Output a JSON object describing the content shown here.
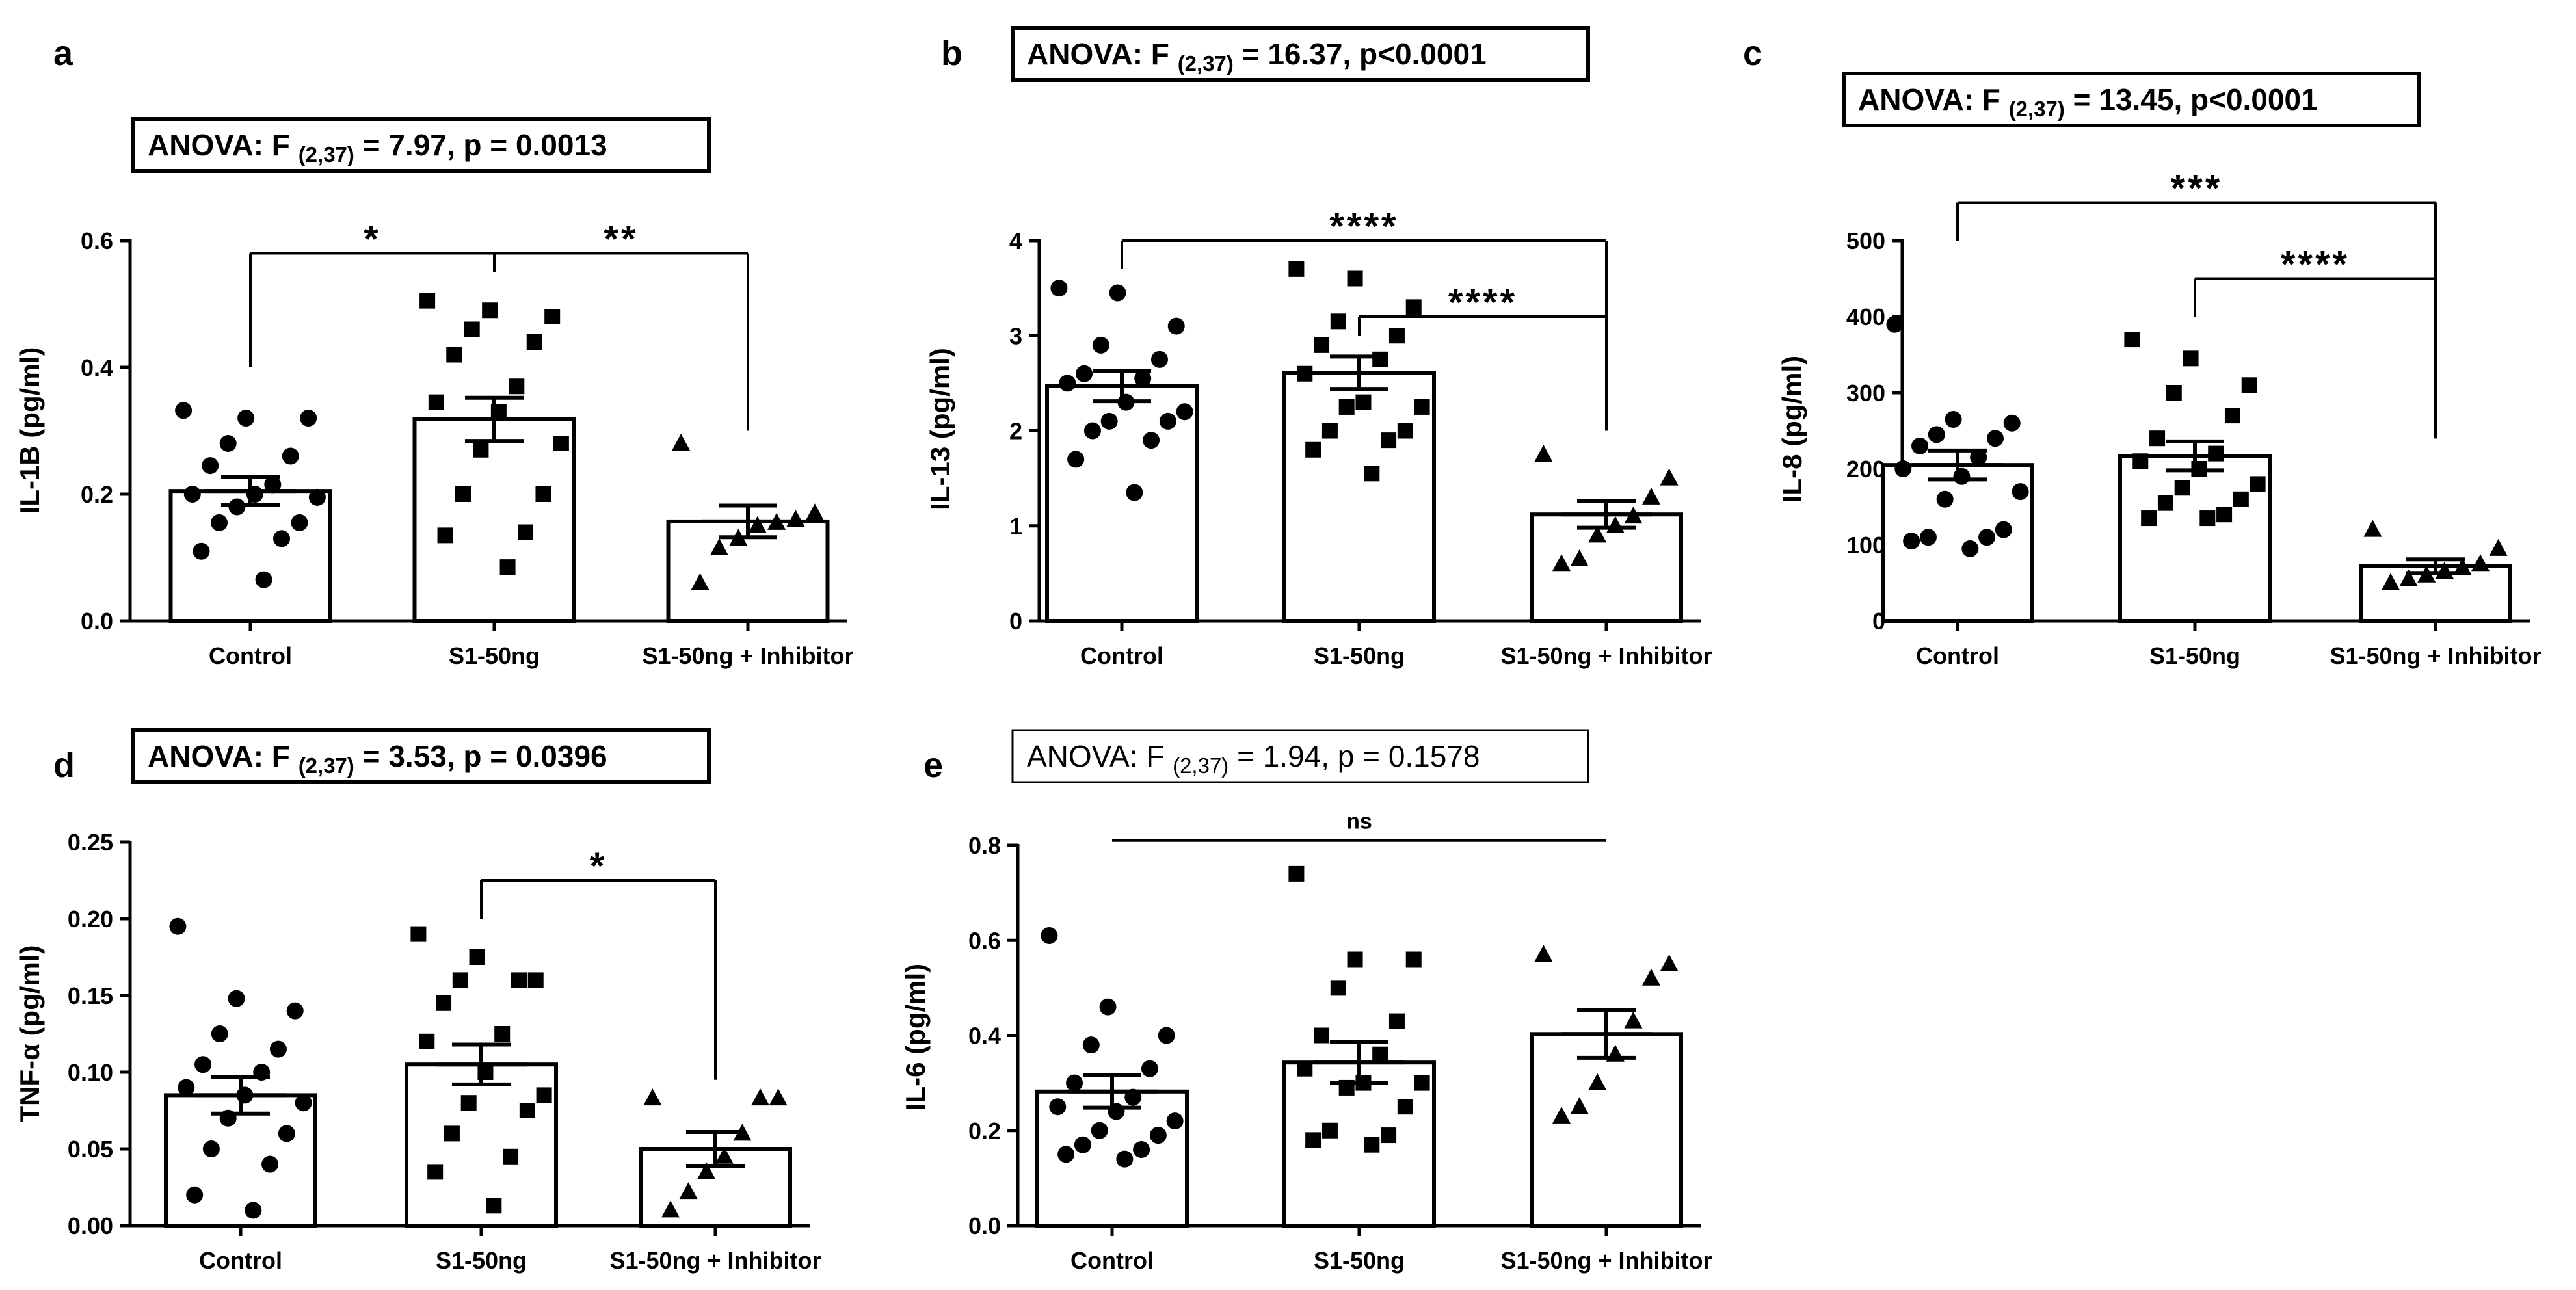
{
  "colors": {
    "ink": "#000000",
    "bar_fill": "#ffffff",
    "background": "#ffffff"
  },
  "chart_data": [
    {
      "panel_letter": "a",
      "type": "bar",
      "anova": {
        "prefix": "ANOVA: F ",
        "df": "(2,37)",
        "suffix": " = 7.97, p = 0.0013",
        "bold": true
      },
      "ylabel": "IL-1B (pg/ml)",
      "ylim": [
        0,
        0.6
      ],
      "yticks": [
        0.0,
        0.2,
        0.4,
        0.6
      ],
      "ytick_labels": [
        "0.0",
        "0.2",
        "0.4",
        "0.6"
      ],
      "categories": [
        "Control",
        "S1-50ng",
        "S1-50ng + Inhibitor"
      ],
      "means": [
        0.205,
        0.318,
        0.157
      ],
      "sem": [
        0.022,
        0.034,
        0.025
      ],
      "markers": [
        "circle",
        "square",
        "triangle"
      ],
      "points": [
        [
          0.332,
          0.32,
          0.32,
          0.28,
          0.26,
          0.245,
          0.215,
          0.2,
          0.2,
          0.195,
          0.18,
          0.155,
          0.155,
          0.13,
          0.11,
          0.065
        ],
        [
          0.505,
          0.49,
          0.48,
          0.46,
          0.44,
          0.42,
          0.37,
          0.345,
          0.33,
          0.28,
          0.27,
          0.2,
          0.2,
          0.14,
          0.135,
          0.085
        ],
        [
          0.28,
          0.17,
          0.16,
          0.155,
          0.15,
          0.13,
          0.115,
          0.06
        ]
      ],
      "comparisons": [
        {
          "from": 0,
          "to": 1,
          "label": "*",
          "y": 0.58,
          "drop_left": 0.4,
          "drop_right": 0.55
        },
        {
          "from": 1,
          "to": 2,
          "label": "**",
          "y": 0.58,
          "drop_left": 0.55,
          "drop_right": 0.3
        }
      ]
    },
    {
      "panel_letter": "b",
      "type": "bar",
      "anova": {
        "prefix": "ANOVA: F ",
        "df": "(2,37)",
        "suffix": " = 16.37, p<0.0001",
        "bold": true
      },
      "ylabel": "IL-13 (pg/ml)",
      "ylim": [
        0,
        4
      ],
      "yticks": [
        0,
        1,
        2,
        3,
        4
      ],
      "ytick_labels": [
        "0",
        "1",
        "2",
        "3",
        "4"
      ],
      "categories": [
        "Control",
        "S1-50ng",
        "S1-50ng + Inhibitor"
      ],
      "means": [
        2.47,
        2.61,
        1.12
      ],
      "sem": [
        0.16,
        0.17,
        0.14
      ],
      "markers": [
        "circle",
        "square",
        "triangle"
      ],
      "points": [
        [
          3.5,
          3.45,
          3.1,
          2.9,
          2.75,
          2.6,
          2.55,
          2.5,
          2.3,
          2.2,
          2.1,
          2.1,
          2.0,
          1.9,
          1.7,
          1.35
        ],
        [
          3.7,
          3.6,
          3.3,
          3.15,
          3.0,
          2.9,
          2.75,
          2.6,
          2.3,
          2.25,
          2.25,
          2.0,
          2.0,
          1.9,
          1.8,
          1.55
        ],
        [
          1.75,
          1.5,
          1.3,
          1.1,
          1.0,
          0.9,
          0.65,
          0.6
        ]
      ],
      "comparisons": [
        {
          "from": 0,
          "to": 2,
          "label": "****",
          "y": 4.0,
          "drop_left": 3.7,
          "drop_right": 2.0
        },
        {
          "from": 1,
          "to": 2,
          "label": "****",
          "y": 3.2,
          "drop_left": 3.0,
          "drop_right": 2.0
        }
      ]
    },
    {
      "panel_letter": "c",
      "type": "bar",
      "anova": {
        "prefix": "ANOVA: F ",
        "df": "(2,37)",
        "suffix": " = 13.45, p<0.0001",
        "bold": true
      },
      "ylabel": "IL-8 (pg/ml)",
      "ylim": [
        0,
        500
      ],
      "yticks": [
        0,
        100,
        200,
        300,
        400,
        500
      ],
      "ytick_labels": [
        "0",
        "100",
        "200",
        "300",
        "400",
        "500"
      ],
      "categories": [
        "Control",
        "S1-50ng",
        "S1-50ng + Inhibitor"
      ],
      "means": [
        205,
        217,
        72
      ],
      "sem": [
        19,
        19,
        9
      ],
      "markers": [
        "circle",
        "square",
        "triangle"
      ],
      "points": [
        [
          390,
          265,
          260,
          245,
          240,
          230,
          215,
          200,
          190,
          170,
          160,
          120,
          110,
          110,
          105,
          95
        ],
        [
          370,
          345,
          310,
          300,
          270,
          240,
          220,
          210,
          200,
          180,
          175,
          160,
          155,
          140,
          135,
          135
        ],
        [
          120,
          95,
          75,
          70,
          65,
          60,
          55,
          50
        ]
      ],
      "comparisons": [
        {
          "from": 0,
          "to": 2,
          "label": "***",
          "y": 550,
          "drop_left": 500,
          "drop_right": 240
        },
        {
          "from": 1,
          "to": 2,
          "label": "****",
          "y": 450,
          "drop_left": 400,
          "drop_right": 240
        }
      ]
    },
    {
      "panel_letter": "d",
      "type": "bar",
      "anova": {
        "prefix": "ANOVA: F ",
        "df": "(2,37)",
        "suffix": " = 3.53, p = 0.0396",
        "bold": true
      },
      "ylabel": "TNF-α (pg/ml)",
      "ylim": [
        0,
        0.25
      ],
      "yticks": [
        0.0,
        0.05,
        0.1,
        0.15,
        0.2,
        0.25
      ],
      "ytick_labels": [
        "0.00",
        "0.05",
        "0.10",
        "0.15",
        "0.20",
        "0.25"
      ],
      "categories": [
        "Control",
        "S1-50ng",
        "S1-50ng + Inhibitor"
      ],
      "means": [
        0.085,
        0.105,
        0.05
      ],
      "sem": [
        0.012,
        0.013,
        0.011
      ],
      "markers": [
        "circle",
        "square",
        "triangle"
      ],
      "points": [
        [
          0.195,
          0.148,
          0.14,
          0.125,
          0.115,
          0.105,
          0.1,
          0.09,
          0.085,
          0.08,
          0.07,
          0.06,
          0.05,
          0.04,
          0.02,
          0.01
        ],
        [
          0.19,
          0.175,
          0.16,
          0.16,
          0.16,
          0.145,
          0.125,
          0.12,
          0.1,
          0.085,
          0.08,
          0.075,
          0.06,
          0.045,
          0.035,
          0.013
        ],
        [
          0.083,
          0.083,
          0.083,
          0.06,
          0.045,
          0.035,
          0.022,
          0.01
        ]
      ],
      "comparisons": [
        {
          "from": 1,
          "to": 2,
          "label": "*",
          "y": 0.225,
          "drop_left": 0.2,
          "drop_right": 0.095
        }
      ]
    },
    {
      "panel_letter": "e",
      "type": "bar",
      "anova": {
        "prefix": "ANOVA: F ",
        "df": "(2,37)",
        "suffix": " = 1.94, p = 0.1578",
        "bold": false
      },
      "ylabel": "IL-6 (pg/ml)",
      "ylim": [
        0,
        0.8
      ],
      "yticks": [
        0.0,
        0.2,
        0.4,
        0.6,
        0.8
      ],
      "ytick_labels": [
        "0.0",
        "0.2",
        "0.4",
        "0.6",
        "0.8"
      ],
      "categories": [
        "Control",
        "S1-50ng",
        "S1-50ng + Inhibitor"
      ],
      "means": [
        0.282,
        0.343,
        0.403
      ],
      "sem": [
        0.034,
        0.043,
        0.05
      ],
      "markers": [
        "circle",
        "square",
        "triangle"
      ],
      "points": [
        [
          0.61,
          0.46,
          0.4,
          0.38,
          0.33,
          0.3,
          0.27,
          0.25,
          0.24,
          0.22,
          0.2,
          0.19,
          0.17,
          0.16,
          0.15,
          0.14
        ],
        [
          0.74,
          0.56,
          0.56,
          0.5,
          0.43,
          0.4,
          0.36,
          0.33,
          0.3,
          0.3,
          0.29,
          0.25,
          0.2,
          0.19,
          0.18,
          0.17
        ],
        [
          0.57,
          0.55,
          0.52,
          0.43,
          0.36,
          0.3,
          0.25,
          0.23
        ]
      ],
      "comparisons": [
        {
          "from": 0,
          "to": 2,
          "label": "ns",
          "y": 0.81,
          "drop_left": null,
          "drop_right": null
        }
      ]
    }
  ]
}
